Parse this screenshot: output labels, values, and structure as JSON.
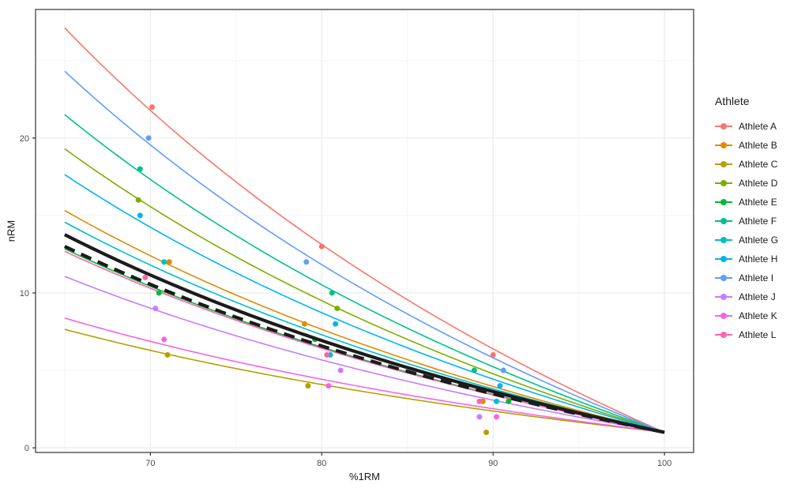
{
  "chart_data": {
    "type": "scatter",
    "title": "",
    "xlabel": "%1RM",
    "ylabel": "nRM",
    "xlim": [
      63.3,
      101.7
    ],
    "ylim": [
      -0.3,
      28.3
    ],
    "x_ticks": [
      70,
      80,
      90,
      100
    ],
    "y_ticks": [
      0,
      10,
      20
    ],
    "x_minor_ticks": [
      65,
      75,
      85,
      95
    ],
    "y_minor_ticks": [
      5,
      15,
      25
    ],
    "grid": "major+minor",
    "curve_model": "nRM = 1 + c * (100 - x) / x, drawn for x in [65, 100]; every curve converges at (100, 1)",
    "curve_x_range": [
      65,
      100
    ],
    "legend": {
      "title": "Athlete",
      "position": "right"
    },
    "series": [
      {
        "name": "Athlete A",
        "color": "#F8766D",
        "c": 48.5,
        "points": [
          [
            70.1,
            22
          ],
          [
            80.0,
            13
          ],
          [
            90.0,
            6
          ]
        ]
      },
      {
        "name": "Athlete B",
        "color": "#DE8C00",
        "c": 26.6,
        "points": [
          [
            71.1,
            12
          ],
          [
            79.0,
            8
          ],
          [
            89.4,
            3
          ]
        ]
      },
      {
        "name": "Athlete C",
        "color": "#B79F00",
        "c": 12.35,
        "points": [
          [
            71.0,
            6
          ],
          [
            79.2,
            4
          ],
          [
            89.6,
            1
          ]
        ]
      },
      {
        "name": "Athlete D",
        "color": "#7CAE00",
        "c": 34.0,
        "points": [
          [
            69.3,
            16
          ],
          [
            80.9,
            9
          ]
        ]
      },
      {
        "name": "Athlete E",
        "color": "#00BA38",
        "c": 22.0,
        "points": [
          [
            70.5,
            10
          ],
          [
            79.6,
            7
          ],
          [
            90.9,
            3
          ]
        ]
      },
      {
        "name": "Athlete F",
        "color": "#00C08B",
        "c": 38.1,
        "points": [
          [
            69.4,
            18
          ],
          [
            80.6,
            10
          ],
          [
            88.9,
            5
          ]
        ]
      },
      {
        "name": "Athlete G",
        "color": "#00BFC4",
        "c": 25.2,
        "points": [
          [
            70.8,
            12
          ],
          [
            80.5,
            6
          ],
          [
            90.2,
            3
          ]
        ]
      },
      {
        "name": "Athlete H",
        "color": "#00B4F0",
        "c": 30.9,
        "points": [
          [
            69.4,
            15
          ],
          [
            80.8,
            8
          ],
          [
            90.4,
            4
          ]
        ]
      },
      {
        "name": "Athlete I",
        "color": "#619CFF",
        "c": 43.3,
        "points": [
          [
            69.9,
            20
          ],
          [
            79.1,
            12
          ],
          [
            90.6,
            5
          ]
        ]
      },
      {
        "name": "Athlete J",
        "color": "#C77CFF",
        "c": 18.7,
        "points": [
          [
            70.3,
            9
          ],
          [
            81.1,
            5
          ],
          [
            89.2,
            2
          ]
        ]
      },
      {
        "name": "Athlete K",
        "color": "#F564E3",
        "c": 13.7,
        "points": [
          [
            70.8,
            7
          ],
          [
            80.4,
            4
          ],
          [
            90.2,
            2
          ]
        ]
      },
      {
        "name": "Athlete L",
        "color": "#FF64B0",
        "c": 21.7,
        "points": [
          [
            69.7,
            11
          ],
          [
            80.3,
            6
          ],
          [
            89.2,
            3
          ]
        ]
      }
    ],
    "group_curves": [
      {
        "name": "group-mean-solid",
        "style": "solid",
        "color": "#1c1c1c",
        "stroke_width": 4.2,
        "c": 23.7
      },
      {
        "name": "group-mean-dashed",
        "style": "dashed",
        "color": "#1c1c1c",
        "stroke_width": 4.2,
        "c": 22.3,
        "dash": [
          14,
          9
        ]
      }
    ],
    "theme": {
      "panel_background": "#ffffff",
      "panel_border": "#333333",
      "grid_major": "#ebebeb",
      "grid_minor": "#f5f5f5",
      "tick_mark": "#333333",
      "tick_label_color": "#4d4d4d",
      "tick_label_size": 11
    }
  }
}
